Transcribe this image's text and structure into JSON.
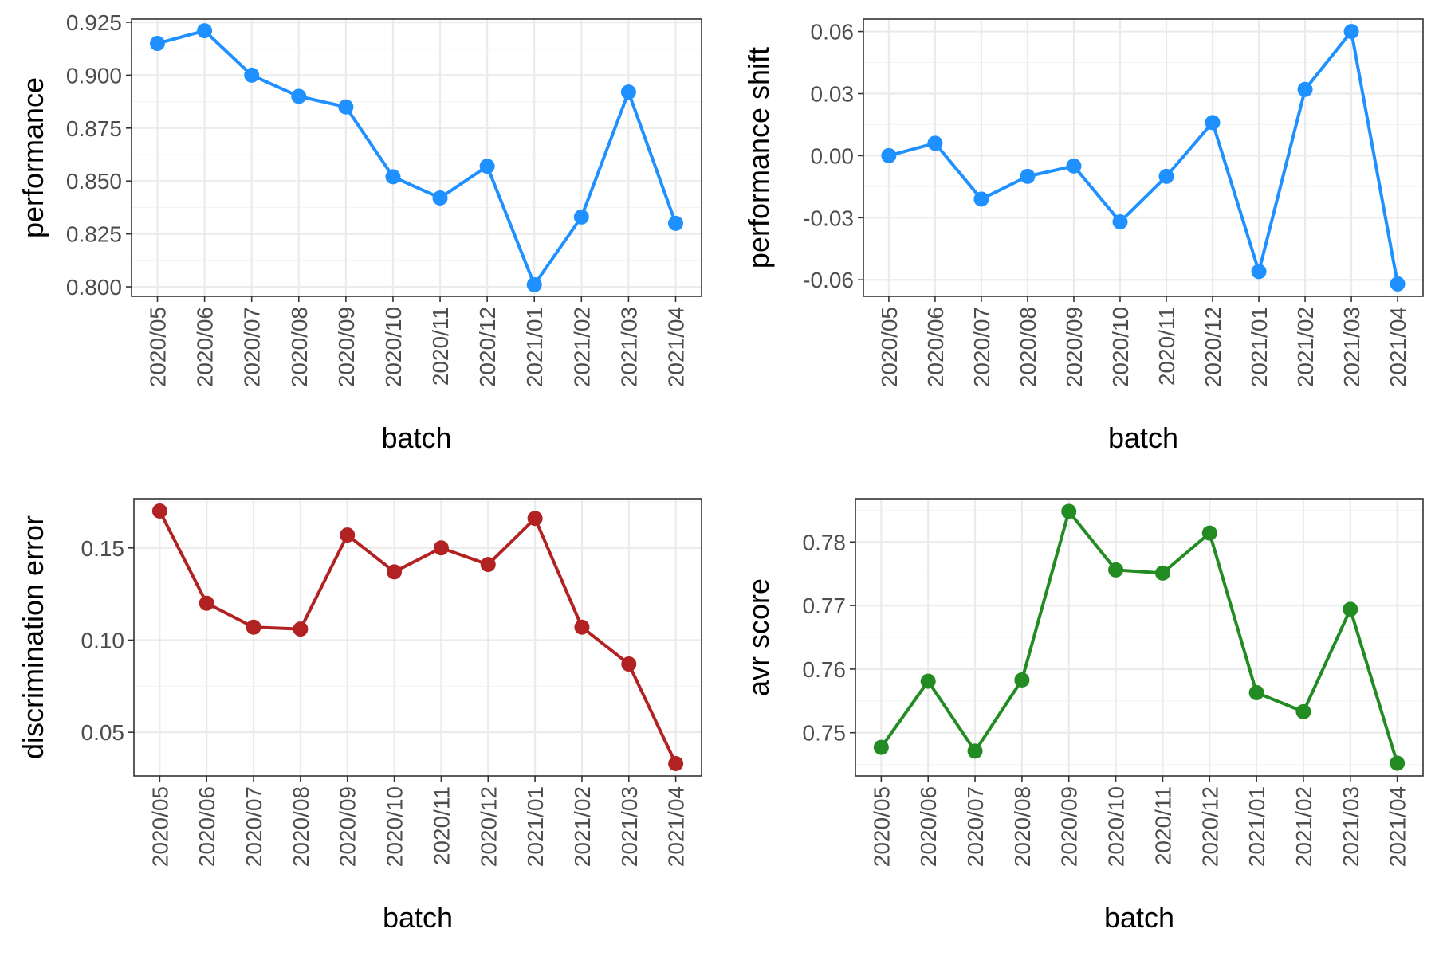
{
  "chart_data": [
    {
      "type": "line",
      "xlabel": "batch",
      "ylabel": "performance",
      "color": "#1E90FF",
      "categories": [
        "2020/05",
        "2020/06",
        "2020/07",
        "2020/08",
        "2020/09",
        "2020/10",
        "2020/11",
        "2020/12",
        "2021/01",
        "2021/02",
        "2021/03",
        "2021/04"
      ],
      "values": [
        0.915,
        0.921,
        0.9,
        0.89,
        0.885,
        0.852,
        0.842,
        0.857,
        0.801,
        0.833,
        0.892,
        0.83
      ],
      "ylim": [
        0.7955,
        0.9265
      ],
      "yticks": [
        0.8,
        0.825,
        0.85,
        0.875,
        0.9,
        0.925
      ],
      "ytick_labels": [
        "0.800",
        "0.825",
        "0.850",
        "0.875",
        "0.900",
        "0.925"
      ],
      "grid": true
    },
    {
      "type": "line",
      "xlabel": "batch",
      "ylabel": "performance shift",
      "color": "#1E90FF",
      "categories": [
        "2020/05",
        "2020/06",
        "2020/07",
        "2020/08",
        "2020/09",
        "2020/10",
        "2020/11",
        "2020/12",
        "2021/01",
        "2021/02",
        "2021/03",
        "2021/04"
      ],
      "values": [
        0.0,
        0.006,
        -0.021,
        -0.01,
        -0.005,
        -0.032,
        -0.01,
        0.016,
        -0.056,
        0.032,
        0.06,
        -0.062
      ],
      "ylim": [
        -0.068,
        0.066
      ],
      "yticks": [
        -0.06,
        -0.03,
        0.0,
        0.03,
        0.06
      ],
      "ytick_labels": [
        "-0.06",
        "-0.03",
        "0.00",
        "0.03",
        "0.06"
      ],
      "grid": true
    },
    {
      "type": "line",
      "xlabel": "batch",
      "ylabel": "discrimination error",
      "color": "#B22222",
      "categories": [
        "2020/05",
        "2020/06",
        "2020/07",
        "2020/08",
        "2020/09",
        "2020/10",
        "2020/11",
        "2020/12",
        "2021/01",
        "2021/02",
        "2021/03",
        "2021/04"
      ],
      "values": [
        0.17,
        0.12,
        0.107,
        0.106,
        0.157,
        0.137,
        0.15,
        0.141,
        0.166,
        0.107,
        0.087,
        0.033
      ],
      "ylim": [
        0.0263,
        0.1767
      ],
      "yticks": [
        0.05,
        0.1,
        0.15
      ],
      "ytick_labels": [
        "0.05",
        "0.10",
        "0.15"
      ],
      "grid": true
    },
    {
      "type": "line",
      "xlabel": "batch",
      "ylabel": "avr score",
      "color": "#228B22",
      "categories": [
        "2020/05",
        "2020/06",
        "2020/07",
        "2020/08",
        "2020/09",
        "2020/10",
        "2020/11",
        "2020/12",
        "2021/01",
        "2021/02",
        "2021/03",
        "2021/04"
      ],
      "values": [
        0.7477,
        0.7581,
        0.7471,
        0.7583,
        0.7848,
        0.7756,
        0.7751,
        0.7814,
        0.7563,
        0.7533,
        0.7694,
        0.7452
      ],
      "ylim": [
        0.7432,
        0.7868
      ],
      "yticks": [
        0.75,
        0.76,
        0.77,
        0.78
      ],
      "ytick_labels": [
        "0.75",
        "0.76",
        "0.77",
        "0.78"
      ],
      "grid": true
    }
  ]
}
